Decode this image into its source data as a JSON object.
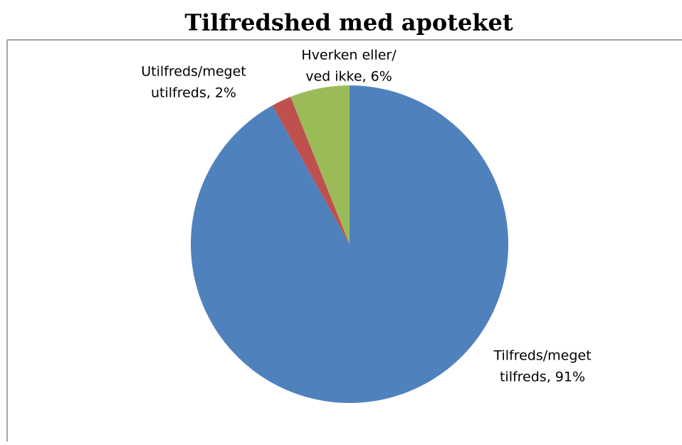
{
  "chart_data": {
    "type": "pie",
    "title": "Tilfredshed med apoteket",
    "values": [
      91,
      2,
      6
    ],
    "value_labels": [
      [
        "Tilfreds/meget",
        "tilfreds, 91%"
      ],
      [
        "Utilfreds/meget",
        "utilfreds, 2%"
      ],
      [
        "Hverken eller/",
        "ved ikke, 6%"
      ]
    ],
    "colors": [
      "#4f81bd",
      "#c0504d",
      "#9bbb59"
    ]
  }
}
